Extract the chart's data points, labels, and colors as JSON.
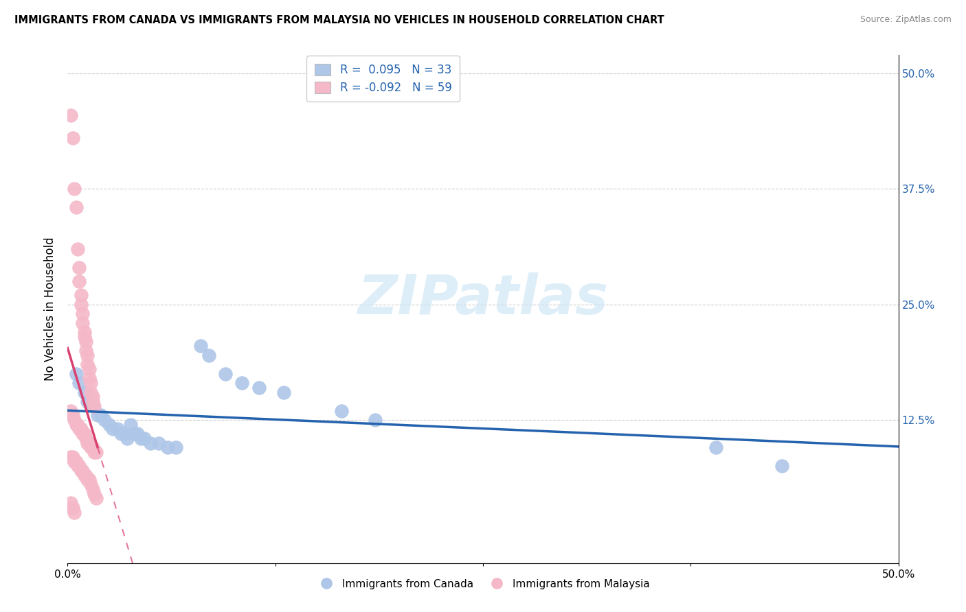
{
  "title": "IMMIGRANTS FROM CANADA VS IMMIGRANTS FROM MALAYSIA NO VEHICLES IN HOUSEHOLD CORRELATION CHART",
  "source": "Source: ZipAtlas.com",
  "ylabel": "No Vehicles in Household",
  "x_min": 0.0,
  "x_max": 0.5,
  "y_min": -0.03,
  "y_max": 0.52,
  "y_ticks": [
    0.0,
    0.125,
    0.25,
    0.375,
    0.5
  ],
  "y_tick_labels": [
    "",
    "12.5%",
    "25.0%",
    "37.5%",
    "50.0%"
  ],
  "watermark": "ZIPatlas",
  "legend_r_canada": "R =  0.095",
  "legend_n_canada": "N = 33",
  "legend_r_malaysia": "R = -0.092",
  "legend_n_malaysia": "N = 59",
  "canada_color": "#aec6e8",
  "malaysia_color": "#f4b8c8",
  "trendline_canada_color": "#2563ae",
  "trendline_malaysia_color": "#d94070",
  "canada_scatter": [
    [
      0.005,
      0.175
    ],
    [
      0.007,
      0.165
    ],
    [
      0.01,
      0.155
    ],
    [
      0.012,
      0.145
    ],
    [
      0.015,
      0.14
    ],
    [
      0.018,
      0.13
    ],
    [
      0.02,
      0.13
    ],
    [
      0.022,
      0.125
    ],
    [
      0.025,
      0.12
    ],
    [
      0.027,
      0.115
    ],
    [
      0.03,
      0.115
    ],
    [
      0.032,
      0.11
    ],
    [
      0.034,
      0.11
    ],
    [
      0.036,
      0.105
    ],
    [
      0.038,
      0.12
    ],
    [
      0.04,
      0.11
    ],
    [
      0.042,
      0.11
    ],
    [
      0.044,
      0.105
    ],
    [
      0.046,
      0.105
    ],
    [
      0.05,
      0.1
    ],
    [
      0.055,
      0.1
    ],
    [
      0.06,
      0.095
    ],
    [
      0.065,
      0.095
    ],
    [
      0.08,
      0.205
    ],
    [
      0.085,
      0.195
    ],
    [
      0.095,
      0.175
    ],
    [
      0.105,
      0.165
    ],
    [
      0.115,
      0.16
    ],
    [
      0.13,
      0.155
    ],
    [
      0.165,
      0.135
    ],
    [
      0.185,
      0.125
    ],
    [
      0.39,
      0.095
    ],
    [
      0.43,
      0.075
    ]
  ],
  "malaysia_scatter": [
    [
      0.002,
      0.455
    ],
    [
      0.003,
      0.43
    ],
    [
      0.004,
      0.375
    ],
    [
      0.005,
      0.355
    ],
    [
      0.006,
      0.31
    ],
    [
      0.007,
      0.29
    ],
    [
      0.007,
      0.275
    ],
    [
      0.008,
      0.26
    ],
    [
      0.008,
      0.25
    ],
    [
      0.009,
      0.24
    ],
    [
      0.009,
      0.23
    ],
    [
      0.01,
      0.22
    ],
    [
      0.01,
      0.215
    ],
    [
      0.011,
      0.21
    ],
    [
      0.011,
      0.2
    ],
    [
      0.012,
      0.195
    ],
    [
      0.012,
      0.185
    ],
    [
      0.013,
      0.18
    ],
    [
      0.013,
      0.17
    ],
    [
      0.014,
      0.165
    ],
    [
      0.014,
      0.155
    ],
    [
      0.015,
      0.15
    ],
    [
      0.015,
      0.145
    ],
    [
      0.016,
      0.14
    ],
    [
      0.002,
      0.135
    ],
    [
      0.003,
      0.13
    ],
    [
      0.004,
      0.125
    ],
    [
      0.005,
      0.12
    ],
    [
      0.006,
      0.12
    ],
    [
      0.007,
      0.115
    ],
    [
      0.008,
      0.115
    ],
    [
      0.009,
      0.11
    ],
    [
      0.01,
      0.11
    ],
    [
      0.011,
      0.105
    ],
    [
      0.012,
      0.1
    ],
    [
      0.013,
      0.1
    ],
    [
      0.014,
      0.095
    ],
    [
      0.015,
      0.095
    ],
    [
      0.016,
      0.09
    ],
    [
      0.017,
      0.09
    ],
    [
      0.002,
      0.085
    ],
    [
      0.003,
      0.085
    ],
    [
      0.004,
      0.08
    ],
    [
      0.005,
      0.08
    ],
    [
      0.006,
      0.075
    ],
    [
      0.007,
      0.075
    ],
    [
      0.008,
      0.07
    ],
    [
      0.009,
      0.07
    ],
    [
      0.01,
      0.065
    ],
    [
      0.011,
      0.065
    ],
    [
      0.012,
      0.06
    ],
    [
      0.013,
      0.06
    ],
    [
      0.014,
      0.055
    ],
    [
      0.015,
      0.05
    ],
    [
      0.016,
      0.045
    ],
    [
      0.017,
      0.04
    ],
    [
      0.002,
      0.035
    ],
    [
      0.003,
      0.03
    ],
    [
      0.004,
      0.025
    ]
  ]
}
